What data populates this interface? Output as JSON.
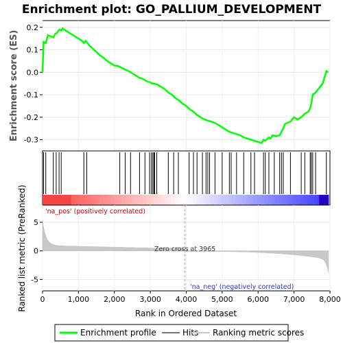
{
  "chart_data": {
    "type": "line",
    "title": "Enrichment plot: GO_PALLIUM_DEVELOPMENT",
    "top_panel": {
      "ylabel": "Enrichment score (ES)",
      "ylim": [
        -0.35,
        0.23
      ],
      "yticks": [
        0.2,
        0.1,
        0.0,
        -0.1,
        -0.2,
        -0.3
      ],
      "ytick_labels": [
        "0.2",
        "0.1",
        "0.0",
        "-0.1",
        "-0.2",
        "-0.3"
      ],
      "series": [
        {
          "name": "Enrichment profile",
          "color": "#00ff00",
          "x": [
            0,
            30,
            90,
            150,
            220,
            300,
            350,
            400,
            470,
            520,
            560,
            600,
            700,
            800,
            900,
            1000,
            1100,
            1150,
            1200,
            1250,
            1300,
            1400,
            1500,
            1600,
            1700,
            1800,
            1900,
            2000,
            2100,
            2200,
            2300,
            2400,
            2500,
            2600,
            2700,
            2800,
            2900,
            3000,
            3050,
            3100,
            3200,
            3300,
            3400,
            3500,
            3600,
            3700,
            3800,
            3900,
            4000,
            4100,
            4200,
            4300,
            4400,
            4500,
            4600,
            4700,
            4800,
            4900,
            5000,
            5100,
            5200,
            5300,
            5400,
            5500,
            5600,
            5700,
            5800,
            5900,
            6000,
            6100,
            6150,
            6200,
            6300,
            6350,
            6400,
            6500,
            6600,
            6650,
            6700,
            6750,
            6900,
            7000,
            7100,
            7200,
            7300,
            7400,
            7450,
            7480,
            7520,
            7600,
            7700,
            7800,
            7900,
            7950
          ],
          "y": [
            0.0,
            0.135,
            0.13,
            0.165,
            0.16,
            0.155,
            0.17,
            0.175,
            0.19,
            0.185,
            0.195,
            0.19,
            0.18,
            0.17,
            0.16,
            0.15,
            0.14,
            0.13,
            0.14,
            0.13,
            0.12,
            0.105,
            0.09,
            0.075,
            0.065,
            0.05,
            0.04,
            0.03,
            0.028,
            0.02,
            0.012,
            0.005,
            -0.005,
            -0.015,
            -0.025,
            -0.03,
            -0.04,
            -0.045,
            -0.05,
            -0.05,
            -0.055,
            -0.065,
            -0.075,
            -0.09,
            -0.1,
            -0.115,
            -0.125,
            -0.14,
            -0.15,
            -0.165,
            -0.175,
            -0.19,
            -0.2,
            -0.21,
            -0.215,
            -0.22,
            -0.225,
            -0.235,
            -0.245,
            -0.255,
            -0.265,
            -0.27,
            -0.275,
            -0.28,
            -0.29,
            -0.295,
            -0.3,
            -0.305,
            -0.31,
            -0.315,
            -0.3,
            -0.305,
            -0.29,
            -0.295,
            -0.28,
            -0.285,
            -0.28,
            -0.265,
            -0.25,
            -0.23,
            -0.22,
            -0.2,
            -0.21,
            -0.2,
            -0.185,
            -0.175,
            -0.16,
            -0.14,
            -0.1,
            -0.09,
            -0.07,
            -0.05,
            0.005,
            0.0
          ]
        }
      ]
    },
    "hits": [
      30,
      90,
      300,
      380,
      460,
      520,
      1150,
      1230,
      2150,
      2300,
      2450,
      2700,
      2850,
      2980,
      3030,
      3070,
      3100,
      3120,
      3180,
      3500,
      3650,
      3780,
      4080,
      4200,
      4300,
      4450,
      4550,
      4600,
      4650,
      4800,
      5000,
      5200,
      5250,
      5400,
      5600,
      5800,
      5900,
      6150,
      6200,
      6300,
      6450,
      6600,
      6650,
      6700,
      6900,
      7200,
      7300,
      7450,
      7480,
      7520,
      7600,
      7900
    ],
    "ranked_panel": {
      "ylabel": "Ranked list metric (PreRanked)",
      "xlabel": "Rank in Ordered Dataset",
      "ylim": [
        -7,
        8
      ],
      "yticks": [
        5,
        0,
        -5
      ],
      "ytick_labels": [
        "5",
        "0",
        "-5"
      ],
      "zero_cross_label": "Zero cross at 3965",
      "zero_cross": 3965,
      "pos_label": "'na_pos' (positively correlated)",
      "neg_label": "'na_neg' (negatively correlated)"
    },
    "x_axis": {
      "xlim": [
        0,
        8000
      ],
      "xticks": [
        0,
        1000,
        2000,
        3000,
        4000,
        5000,
        6000,
        7000,
        8000
      ],
      "xtick_labels": [
        "0",
        "1,000",
        "2,000",
        "3,000",
        "4,000",
        "5,000",
        "6,000",
        "7,000",
        "8,000"
      ]
    },
    "legend": {
      "position": "bottom",
      "items": [
        {
          "label": "Enrichment profile",
          "color": "#00ff00"
        },
        {
          "label": "Hits",
          "color": "#000000"
        },
        {
          "label": "Ranking metric scores",
          "color": "#cccccc"
        }
      ]
    }
  }
}
